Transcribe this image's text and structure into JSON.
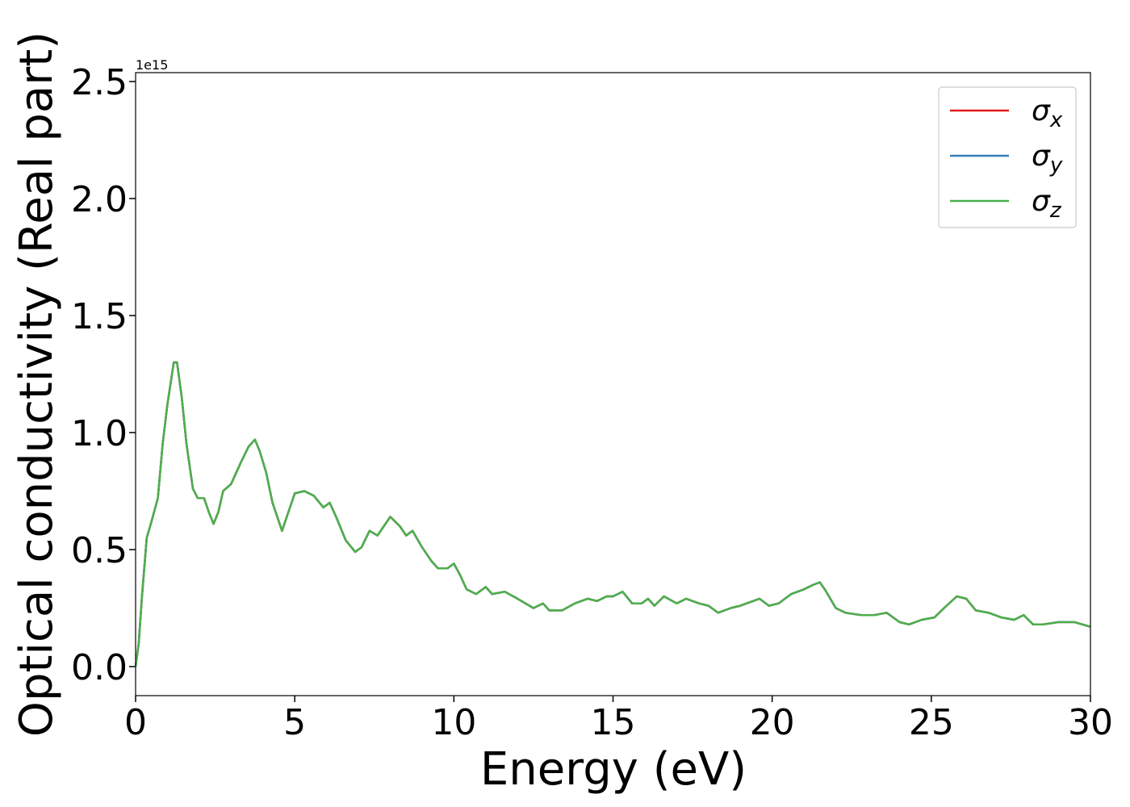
{
  "chart_data": {
    "type": "line",
    "xlabel": "Energy (eV)",
    "ylabel": "Optical conductivity (Real part)",
    "y_offset_label": "1e15",
    "x": [
      0,
      0.1,
      0.2,
      0.35,
      0.5,
      0.7,
      0.85,
      1.0,
      1.2,
      1.3,
      1.45,
      1.6,
      1.8,
      1.95,
      2.15,
      2.3,
      2.45,
      2.6,
      2.75,
      3.0,
      3.3,
      3.55,
      3.75,
      3.9,
      4.1,
      4.3,
      4.6,
      4.8,
      5.0,
      5.3,
      5.6,
      5.9,
      6.1,
      6.3,
      6.6,
      6.9,
      7.1,
      7.35,
      7.6,
      7.8,
      8.0,
      8.3,
      8.5,
      8.7,
      9.0,
      9.3,
      9.5,
      9.8,
      10.0,
      10.2,
      10.4,
      10.7,
      11.0,
      11.2,
      11.6,
      12.0,
      12.5,
      12.8,
      13.0,
      13.4,
      13.8,
      14.2,
      14.5,
      14.8,
      15.0,
      15.3,
      15.6,
      15.9,
      16.1,
      16.3,
      16.6,
      17.0,
      17.3,
      17.7,
      18.0,
      18.3,
      18.7,
      19.0,
      19.6,
      19.9,
      20.2,
      20.6,
      21.0,
      21.3,
      21.5,
      21.7,
      22.0,
      22.3,
      22.8,
      23.2,
      23.6,
      24.0,
      24.3,
      24.7,
      25.1,
      25.4,
      25.8,
      26.1,
      26.4,
      26.8,
      27.2,
      27.6,
      27.9,
      28.2,
      28.5,
      29.0,
      29.5,
      30
    ],
    "series": [
      {
        "name": "σx",
        "color": "#e41a1c",
        "values": [
          0,
          0.1,
          0.3,
          0.55,
          0.62,
          0.72,
          0.95,
          1.12,
          1.3,
          1.3,
          1.15,
          0.95,
          0.76,
          0.72,
          0.72,
          0.66,
          0.61,
          0.66,
          0.75,
          0.78,
          0.87,
          0.94,
          0.97,
          0.92,
          0.83,
          0.7,
          0.58,
          0.66,
          0.74,
          0.75,
          0.73,
          0.68,
          0.7,
          0.64,
          0.54,
          0.49,
          0.51,
          0.58,
          0.56,
          0.6,
          0.64,
          0.6,
          0.56,
          0.58,
          0.51,
          0.45,
          0.42,
          0.42,
          0.44,
          0.39,
          0.33,
          0.31,
          0.34,
          0.31,
          0.32,
          0.29,
          0.25,
          0.27,
          0.24,
          0.24,
          0.27,
          0.29,
          0.28,
          0.3,
          0.3,
          0.32,
          0.27,
          0.27,
          0.29,
          0.26,
          0.3,
          0.27,
          0.29,
          0.27,
          0.26,
          0.23,
          0.25,
          0.26,
          0.29,
          0.26,
          0.27,
          0.31,
          0.33,
          0.35,
          0.36,
          0.32,
          0.25,
          0.23,
          0.22,
          0.22,
          0.23,
          0.19,
          0.18,
          0.2,
          0.21,
          0.25,
          0.3,
          0.29,
          0.24,
          0.23,
          0.21,
          0.2,
          0.22,
          0.18,
          0.18,
          0.19,
          0.19,
          0.17
        ]
      },
      {
        "name": "σy",
        "color": "#377eb8",
        "values": [
          0,
          0.1,
          0.3,
          0.55,
          0.62,
          0.72,
          0.95,
          1.12,
          1.3,
          1.3,
          1.15,
          0.95,
          0.76,
          0.72,
          0.72,
          0.66,
          0.61,
          0.66,
          0.75,
          0.78,
          0.87,
          0.94,
          0.97,
          0.92,
          0.83,
          0.7,
          0.58,
          0.66,
          0.74,
          0.75,
          0.73,
          0.68,
          0.7,
          0.64,
          0.54,
          0.49,
          0.51,
          0.58,
          0.56,
          0.6,
          0.64,
          0.6,
          0.56,
          0.58,
          0.51,
          0.45,
          0.42,
          0.42,
          0.44,
          0.39,
          0.33,
          0.31,
          0.34,
          0.31,
          0.32,
          0.29,
          0.25,
          0.27,
          0.24,
          0.24,
          0.27,
          0.29,
          0.28,
          0.3,
          0.3,
          0.32,
          0.27,
          0.27,
          0.29,
          0.26,
          0.3,
          0.27,
          0.29,
          0.27,
          0.26,
          0.23,
          0.25,
          0.26,
          0.29,
          0.26,
          0.27,
          0.31,
          0.33,
          0.35,
          0.36,
          0.32,
          0.25,
          0.23,
          0.22,
          0.22,
          0.23,
          0.19,
          0.18,
          0.2,
          0.21,
          0.25,
          0.3,
          0.29,
          0.24,
          0.23,
          0.21,
          0.2,
          0.22,
          0.18,
          0.18,
          0.19,
          0.19,
          0.17
        ]
      },
      {
        "name": "σz",
        "color": "#4daf4a",
        "values": [
          0,
          0.1,
          0.3,
          0.55,
          0.62,
          0.72,
          0.95,
          1.12,
          1.3,
          1.3,
          1.15,
          0.95,
          0.76,
          0.72,
          0.72,
          0.66,
          0.61,
          0.66,
          0.75,
          0.78,
          0.87,
          0.94,
          0.97,
          0.92,
          0.83,
          0.7,
          0.58,
          0.66,
          0.74,
          0.75,
          0.73,
          0.68,
          0.7,
          0.64,
          0.54,
          0.49,
          0.51,
          0.58,
          0.56,
          0.6,
          0.64,
          0.6,
          0.56,
          0.58,
          0.51,
          0.45,
          0.42,
          0.42,
          0.44,
          0.39,
          0.33,
          0.31,
          0.34,
          0.31,
          0.32,
          0.29,
          0.25,
          0.27,
          0.24,
          0.24,
          0.27,
          0.29,
          0.28,
          0.3,
          0.3,
          0.32,
          0.27,
          0.27,
          0.29,
          0.26,
          0.3,
          0.27,
          0.29,
          0.27,
          0.26,
          0.23,
          0.25,
          0.26,
          0.29,
          0.26,
          0.27,
          0.31,
          0.33,
          0.35,
          0.36,
          0.32,
          0.25,
          0.23,
          0.22,
          0.22,
          0.23,
          0.19,
          0.18,
          0.2,
          0.21,
          0.25,
          0.3,
          0.29,
          0.24,
          0.23,
          0.21,
          0.2,
          0.22,
          0.18,
          0.18,
          0.19,
          0.19,
          0.17
        ]
      }
    ],
    "xlim": [
      0,
      30
    ],
    "xticks": [
      0,
      5,
      10,
      15,
      20,
      25,
      30
    ],
    "ylim": [
      -0.124,
      2.538
    ],
    "yticks": [
      {
        "value": 0,
        "label": "0.0"
      },
      0.5,
      {
        "value": 1,
        "label": "1.0"
      },
      1.5,
      {
        "value": 2,
        "label": "2.0"
      },
      2.5
    ],
    "grid": false,
    "legend": "upper right"
  }
}
